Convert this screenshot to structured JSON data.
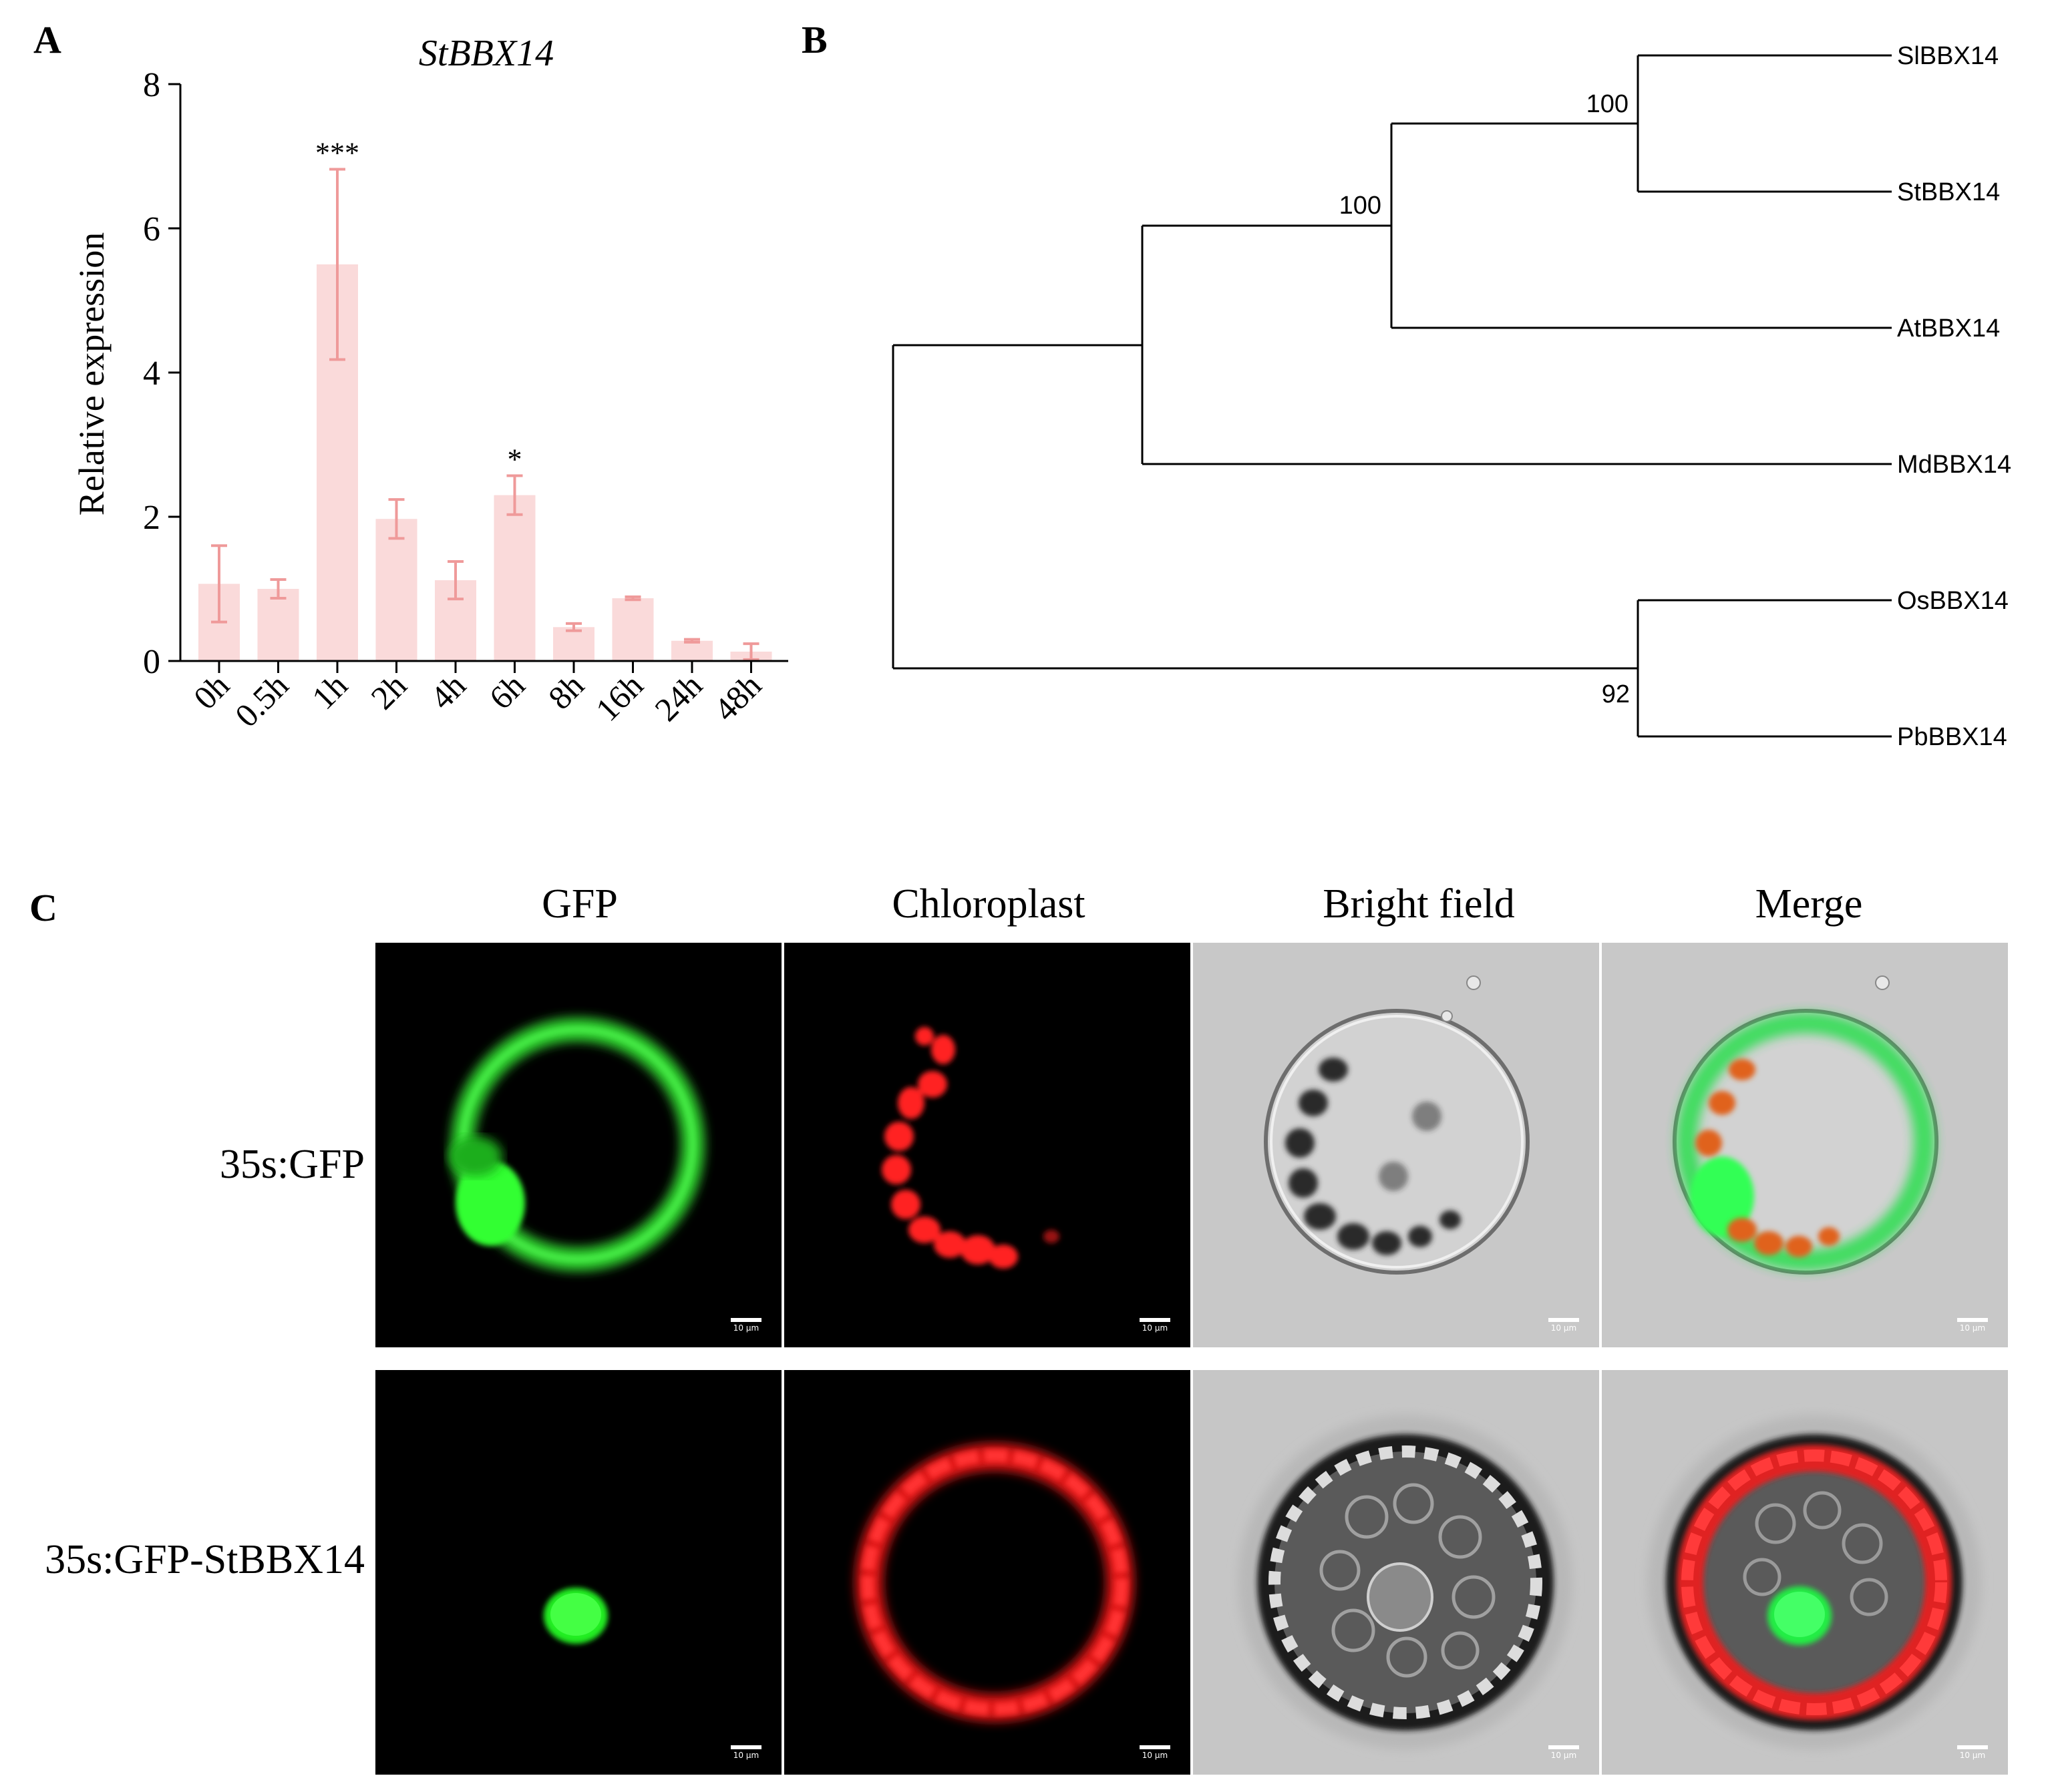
{
  "panel_a": {
    "letter": "A",
    "title": "StBBX14",
    "ylabel": "Relative expression"
  },
  "panel_b": {
    "letter": "B",
    "bootstrap": [
      "100",
      "100",
      "92"
    ]
  },
  "panel_c": {
    "letter": "C",
    "columns": [
      "GFP",
      "Chloroplast",
      "Bright field",
      "Merge"
    ],
    "rows": [
      "35s:GFP",
      "35s:GFP-StBBX14"
    ],
    "scale_label": "10 μm"
  },
  "chart_data": [
    {
      "type": "bar",
      "title": "StBBX14",
      "xlabel": "",
      "ylabel": "Relative expression",
      "categories": [
        "0h",
        "0.5h",
        "1h",
        "2h",
        "4h",
        "6h",
        "8h",
        "16h",
        "24h",
        "48h"
      ],
      "values": [
        1.07,
        1.0,
        5.5,
        1.97,
        1.12,
        2.3,
        0.47,
        0.87,
        0.28,
        0.13
      ],
      "errors": [
        0.53,
        0.13,
        1.32,
        0.27,
        0.26,
        0.27,
        0.05,
        0.02,
        0.02,
        0.11
      ],
      "significance": [
        "",
        "",
        "***",
        "",
        "",
        "*",
        "",
        "",
        "",
        ""
      ],
      "ylim": [
        0,
        8
      ],
      "yticks": [
        0,
        2,
        4,
        6,
        8
      ],
      "colors": {
        "bar": "#fadada",
        "error": "#ef9a9a"
      },
      "grid": false
    },
    {
      "type": "tree",
      "leaves": [
        "SlBBX14",
        "StBBX14",
        "AtBBX14",
        "MdBBX14",
        "OsBBX14",
        "PbBBX14"
      ]
    }
  ]
}
